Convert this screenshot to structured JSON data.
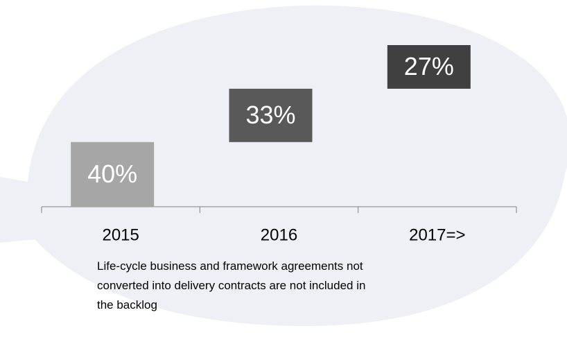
{
  "chart_data": {
    "type": "waterfall",
    "categories": [
      "2015",
      "2016",
      "2017=>"
    ],
    "values": [
      40,
      33,
      27
    ],
    "value_labels": [
      "40%",
      "33%",
      "27%"
    ],
    "colors": [
      "#a6a6a6",
      "#595959",
      "#404040"
    ],
    "note": "Life-cycle business and framework agreements not converted into delivery contracts are not included in the backlog"
  }
}
